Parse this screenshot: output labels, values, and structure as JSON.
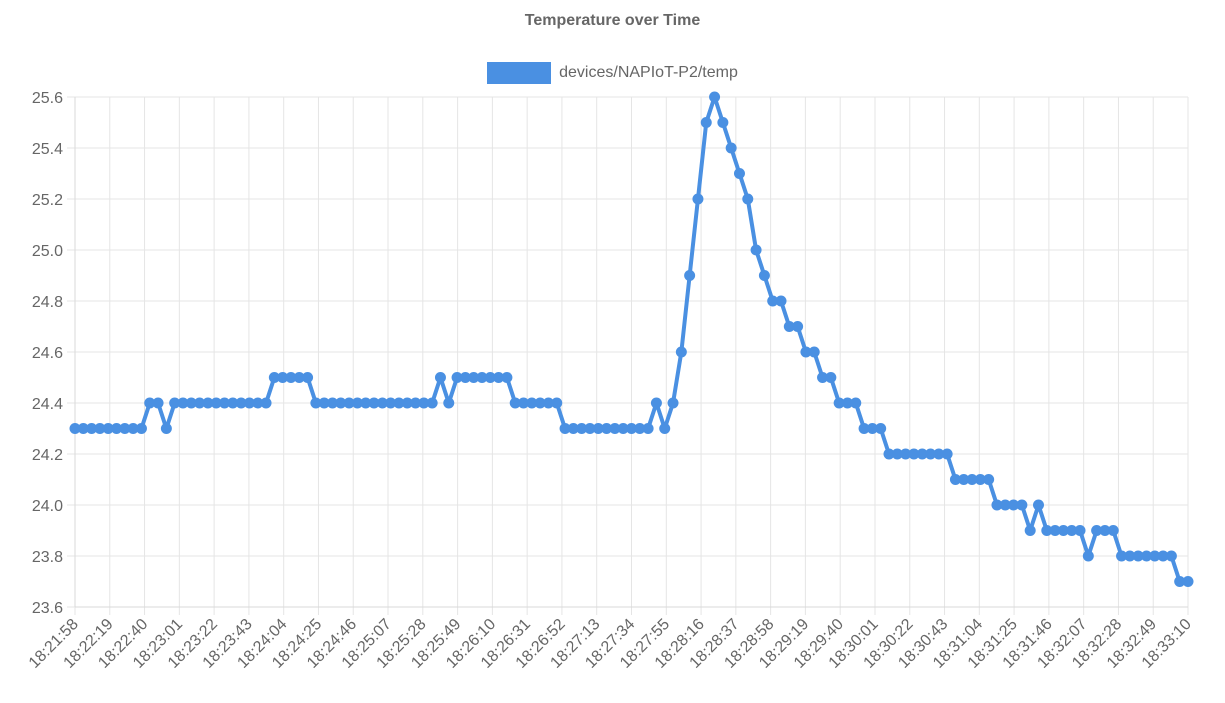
{
  "chart_data": {
    "type": "line",
    "title": "Temperature over Time",
    "xlabel": "",
    "ylabel": "",
    "legend": {
      "position": "top"
    },
    "grid": true,
    "ylim": [
      23.6,
      25.6
    ],
    "yticks": [
      "25.6",
      "25.4",
      "25.2",
      "25.0",
      "24.8",
      "24.6",
      "24.4",
      "24.2",
      "24.0",
      "23.8",
      "23.6"
    ],
    "x_tick_labels": [
      "18:21:58",
      "18:22:19",
      "18:22:40",
      "18:23:01",
      "18:23:22",
      "18:23:43",
      "18:24:04",
      "18:24:25",
      "18:24:46",
      "18:25:07",
      "18:25:28",
      "18:25:49",
      "18:26:10",
      "18:26:31",
      "18:26:52",
      "18:27:13",
      "18:27:34",
      "18:27:55",
      "18:28:16",
      "18:28:37",
      "18:28:58",
      "18:29:19",
      "18:29:40",
      "18:30:01",
      "18:30:22",
      "18:30:43",
      "18:31:04",
      "18:31:25",
      "18:31:46",
      "18:32:07",
      "18:32:28",
      "18:32:49",
      "18:33:10"
    ],
    "series": [
      {
        "name": "devices/NAPIoT-P2/temp",
        "color": "#4a90e2",
        "values": [
          24.3,
          24.3,
          24.3,
          24.3,
          24.3,
          24.3,
          24.3,
          24.3,
          24.3,
          24.4,
          24.4,
          24.3,
          24.4,
          24.4,
          24.4,
          24.4,
          24.4,
          24.4,
          24.4,
          24.4,
          24.4,
          24.4,
          24.4,
          24.4,
          24.5,
          24.5,
          24.5,
          24.5,
          24.5,
          24.4,
          24.4,
          24.4,
          24.4,
          24.4,
          24.4,
          24.4,
          24.4,
          24.4,
          24.4,
          24.4,
          24.4,
          24.4,
          24.4,
          24.4,
          24.5,
          24.4,
          24.5,
          24.5,
          24.5,
          24.5,
          24.5,
          24.5,
          24.5,
          24.4,
          24.4,
          24.4,
          24.4,
          24.4,
          24.4,
          24.3,
          24.3,
          24.3,
          24.3,
          24.3,
          24.3,
          24.3,
          24.3,
          24.3,
          24.3,
          24.3,
          24.4,
          24.3,
          24.4,
          24.6,
          24.9,
          25.2,
          25.5,
          25.6,
          25.5,
          25.4,
          25.3,
          25.2,
          25.0,
          24.9,
          24.8,
          24.8,
          24.7,
          24.7,
          24.6,
          24.6,
          24.5,
          24.5,
          24.4,
          24.4,
          24.4,
          24.3,
          24.3,
          24.3,
          24.2,
          24.2,
          24.2,
          24.2,
          24.2,
          24.2,
          24.2,
          24.2,
          24.1,
          24.1,
          24.1,
          24.1,
          24.1,
          24.0,
          24.0,
          24.0,
          24.0,
          23.9,
          24.0,
          23.9,
          23.9,
          23.9,
          23.9,
          23.9,
          23.8,
          23.9,
          23.9,
          23.9,
          23.8,
          23.8,
          23.8,
          23.8,
          23.8,
          23.8,
          23.8,
          23.7,
          23.7
        ]
      }
    ]
  }
}
